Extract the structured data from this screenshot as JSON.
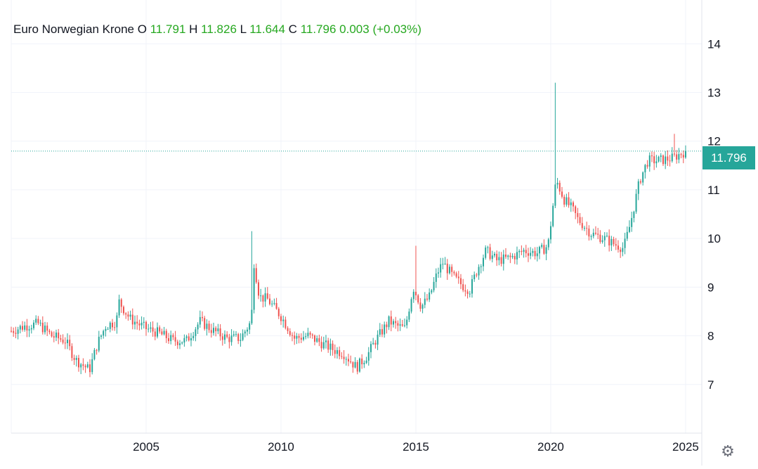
{
  "legend": {
    "title": "Euro Norwegian Krone",
    "o_label": "O",
    "o_value": "11.791",
    "h_label": "H",
    "h_value": "11.826",
    "l_label": "L",
    "l_value": "11.644",
    "c_label": "C",
    "c_value": "11.796",
    "change": "0.003",
    "change_pct": "(+0.03%)"
  },
  "last_price_label": "11.796",
  "settings_icon": "gear-icon",
  "colors": {
    "up": "#26a69a",
    "down": "#ef5350",
    "legend_values": "#26a820",
    "grid": "#f0f3fa",
    "price_line": "#26a69a"
  },
  "chart_data": {
    "type": "candlestick",
    "title": "Euro Norwegian Krone",
    "period": "monthly",
    "xlabel": "",
    "ylabel": "",
    "x_ticks": [
      "2005",
      "2010",
      "2015",
      "2020",
      "2025"
    ],
    "y_ticks": [
      "7",
      "8",
      "9",
      "10",
      "11",
      "12",
      "13",
      "14"
    ],
    "xlim": [
      2000.0,
      2025.6
    ],
    "ylim": [
      6.0,
      14.9
    ],
    "grid": true,
    "last_price": 11.796,
    "anchors": [
      [
        2000.0,
        8.1
      ],
      [
        2000.5,
        8.2
      ],
      [
        2001.0,
        8.25
      ],
      [
        2001.5,
        8.0
      ],
      [
        2002.0,
        7.9
      ],
      [
        2002.4,
        7.5
      ],
      [
        2002.9,
        7.3
      ],
      [
        2003.2,
        7.85
      ],
      [
        2003.5,
        8.2
      ],
      [
        2003.9,
        8.3
      ],
      [
        2004.0,
        8.7
      ],
      [
        2004.4,
        8.35
      ],
      [
        2005.0,
        8.15
      ],
      [
        2005.5,
        8.05
      ],
      [
        2006.0,
        7.9
      ],
      [
        2006.5,
        7.9
      ],
      [
        2007.0,
        8.3
      ],
      [
        2007.5,
        8.1
      ],
      [
        2008.0,
        7.95
      ],
      [
        2008.5,
        7.95
      ],
      [
        2008.9,
        8.3
      ],
      [
        2009.0,
        9.5
      ],
      [
        2009.2,
        8.8
      ],
      [
        2009.5,
        8.75
      ],
      [
        2010.0,
        8.4
      ],
      [
        2010.5,
        7.95
      ],
      [
        2011.0,
        8.0
      ],
      [
        2011.5,
        7.85
      ],
      [
        2012.0,
        7.7
      ],
      [
        2012.3,
        7.65
      ],
      [
        2012.8,
        7.35
      ],
      [
        2013.2,
        7.6
      ],
      [
        2013.5,
        7.9
      ],
      [
        2014.0,
        8.3
      ],
      [
        2014.3,
        8.2
      ],
      [
        2014.6,
        8.15
      ],
      [
        2014.9,
        9.0
      ],
      [
        2015.2,
        8.6
      ],
      [
        2015.5,
        8.8
      ],
      [
        2015.8,
        9.3
      ],
      [
        2016.0,
        9.5
      ],
      [
        2016.4,
        9.2
      ],
      [
        2016.8,
        9.0
      ],
      [
        2017.0,
        8.95
      ],
      [
        2017.3,
        9.4
      ],
      [
        2017.6,
        9.75
      ],
      [
        2018.0,
        9.55
      ],
      [
        2018.5,
        9.6
      ],
      [
        2019.0,
        9.75
      ],
      [
        2019.5,
        9.7
      ],
      [
        2019.9,
        9.85
      ],
      [
        2020.2,
        11.2
      ],
      [
        2020.5,
        10.8
      ],
      [
        2020.8,
        10.6
      ],
      [
        2021.0,
        10.4
      ],
      [
        2021.5,
        10.1
      ],
      [
        2022.0,
        10.0
      ],
      [
        2022.3,
        9.9
      ],
      [
        2022.7,
        9.8
      ],
      [
        2022.95,
        10.3
      ],
      [
        2023.3,
        11.2
      ],
      [
        2023.6,
        11.6
      ],
      [
        2024.0,
        11.6
      ],
      [
        2024.5,
        11.65
      ],
      [
        2025.0,
        11.796
      ]
    ],
    "spikes": [
      {
        "x": 2008.9,
        "high": 10.15
      },
      {
        "x": 2015.0,
        "high": 9.85
      },
      {
        "x": 2020.2,
        "high": 13.2
      },
      {
        "x": 2024.55,
        "high": 12.15
      }
    ]
  }
}
